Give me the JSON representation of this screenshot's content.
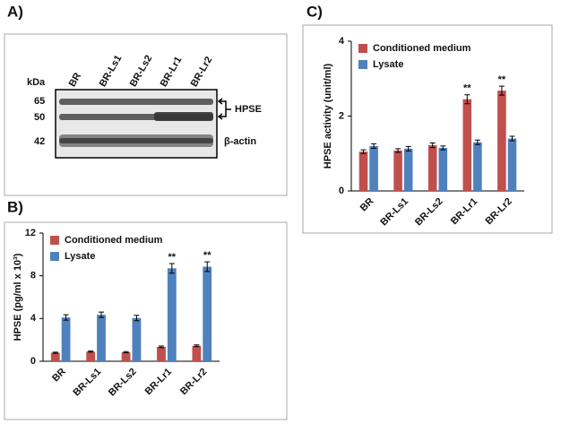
{
  "panel_labels": [
    "A)",
    "B)",
    "C)"
  ],
  "blot": {
    "kda_label": "kDa",
    "markers": [
      "65",
      "50",
      "42"
    ],
    "lanes": [
      "BR",
      "BR-Ls1",
      "BR-Ls2",
      "BR-Lr1",
      "BR-Lr2"
    ],
    "protein_labels": [
      "HPSE",
      "β-actin"
    ]
  },
  "chart_data": [
    {
      "type": "bar",
      "y_label": "HPSE (pg/ml x 10³)",
      "categories": [
        "BR",
        "BR-Ls1",
        "BR-Ls2",
        "BR-Lr1",
        "BR-Lr2"
      ],
      "series": [
        {
          "name": "Conditioned medium",
          "color": "#c0504d",
          "values": [
            0.8,
            0.9,
            0.85,
            1.35,
            1.45
          ],
          "errors": [
            0.05,
            0.05,
            0.05,
            0.08,
            0.08
          ],
          "markers": [
            null,
            null,
            null,
            null,
            null
          ]
        },
        {
          "name": "Lysate",
          "color": "#4f81bd",
          "values": [
            4.1,
            4.35,
            4.05,
            8.7,
            8.85
          ],
          "errors": [
            0.25,
            0.25,
            0.25,
            0.45,
            0.45
          ],
          "markers": [
            null,
            null,
            null,
            "**",
            "**"
          ]
        }
      ],
      "ylim": [
        0,
        12
      ],
      "yticks": [
        0,
        4,
        8,
        12
      ],
      "legend": "upper left"
    },
    {
      "type": "bar",
      "y_label": "HPSE activity (unit/ml)",
      "categories": [
        "BR",
        "BR-Ls1",
        "BR-Ls2",
        "BR-Lr1",
        "BR-Lr2"
      ],
      "series": [
        {
          "name": "Conditioned medium",
          "color": "#c0504d",
          "values": [
            1.05,
            1.08,
            1.22,
            2.45,
            2.68
          ],
          "errors": [
            0.05,
            0.05,
            0.06,
            0.12,
            0.12
          ],
          "markers": [
            null,
            null,
            null,
            "**",
            "**"
          ]
        },
        {
          "name": "Lysate",
          "color": "#4f81bd",
          "values": [
            1.2,
            1.13,
            1.15,
            1.3,
            1.4
          ],
          "errors": [
            0.06,
            0.06,
            0.05,
            0.06,
            0.06
          ],
          "markers": [
            null,
            null,
            null,
            null,
            null
          ]
        }
      ],
      "ylim": [
        0,
        4
      ],
      "yticks": [
        0,
        2,
        4
      ],
      "legend": "upper left"
    }
  ]
}
